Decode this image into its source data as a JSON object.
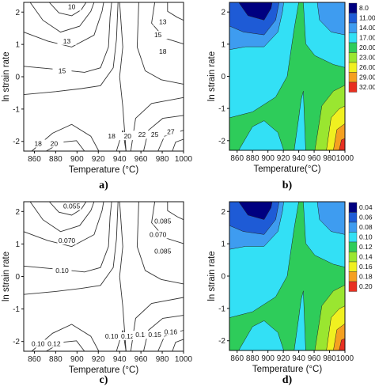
{
  "chart_data": [
    {
      "type": "contour",
      "panel_label": "a)",
      "xlabel": "Temperature (°C)",
      "ylabel": "ln strain rate",
      "xlim": [
        850,
        1000
      ],
      "ylim": [
        -2.3,
        2.3
      ],
      "xticks": [
        "860",
        "880",
        "900",
        "920",
        "940",
        "960",
        "980",
        "1000"
      ],
      "yticks": [
        "-2",
        "-1",
        "0",
        "1",
        "2"
      ],
      "contour_labels": [
        "10",
        "13",
        "13",
        "15",
        "18",
        "15",
        "18",
        "20",
        "18",
        "20",
        "22",
        "25",
        "27"
      ],
      "filled": false
    },
    {
      "type": "filled-contour",
      "panel_label": "b)",
      "xlabel": "Temperature(°C)",
      "ylabel": "ln strain rate",
      "xlim": [
        850,
        1000
      ],
      "ylim": [
        -2.3,
        2.3
      ],
      "xticks": [
        "860",
        "880",
        "900",
        "920",
        "940",
        "960",
        "980",
        "1000"
      ],
      "yticks": [
        "-2",
        "-1",
        "0",
        "1",
        "2"
      ],
      "legend": {
        "levels": [
          "8.0",
          "11.00",
          "14.00",
          "17.00",
          "20.00",
          "23.00",
          "26.00",
          "29.00",
          "32.00"
        ],
        "colors": [
          "#000080",
          "#1e5bd6",
          "#3e9cf0",
          "#33e0f5",
          "#2ecc5a",
          "#9ae630",
          "#f0f020",
          "#f5a020",
          "#e83020"
        ]
      }
    },
    {
      "type": "contour",
      "panel_label": "c)",
      "xlabel": "Temperature (°C)",
      "ylabel": "ln strain rate",
      "xlim": [
        850,
        1000
      ],
      "ylim": [
        -2.3,
        2.3
      ],
      "xticks": [
        "860",
        "880",
        "900",
        "920",
        "940",
        "960",
        "980",
        "1000"
      ],
      "yticks": [
        "-2",
        "-1",
        "0",
        "1",
        "2"
      ],
      "contour_labels": [
        "0.055",
        "0.070",
        "0.085",
        "0.070",
        "0.085",
        "0.10",
        "0.10",
        "0.12",
        "0.10",
        "0.12",
        "0.13",
        "0.15",
        "0.16"
      ],
      "filled": false
    },
    {
      "type": "filled-contour",
      "panel_label": "d)",
      "xlabel": "Temperature (°C)",
      "ylabel": "ln strain rate",
      "xlim": [
        850,
        1000
      ],
      "ylim": [
        -2.3,
        2.3
      ],
      "xticks": [
        "860",
        "880",
        "900",
        "920",
        "940",
        "960",
        "980",
        "1000"
      ],
      "yticks": [
        "-2",
        "-1",
        "0",
        "1",
        "2"
      ],
      "legend": {
        "levels": [
          "0.04",
          "0.06",
          "0.08",
          "0.10",
          "0.12",
          "0.14",
          "0.16",
          "0.18",
          "0.20"
        ],
        "colors": [
          "#000080",
          "#1e5bd6",
          "#3e9cf0",
          "#33e0f5",
          "#2ecc5a",
          "#9ae630",
          "#f0f020",
          "#f5a020",
          "#e83020"
        ]
      }
    }
  ]
}
